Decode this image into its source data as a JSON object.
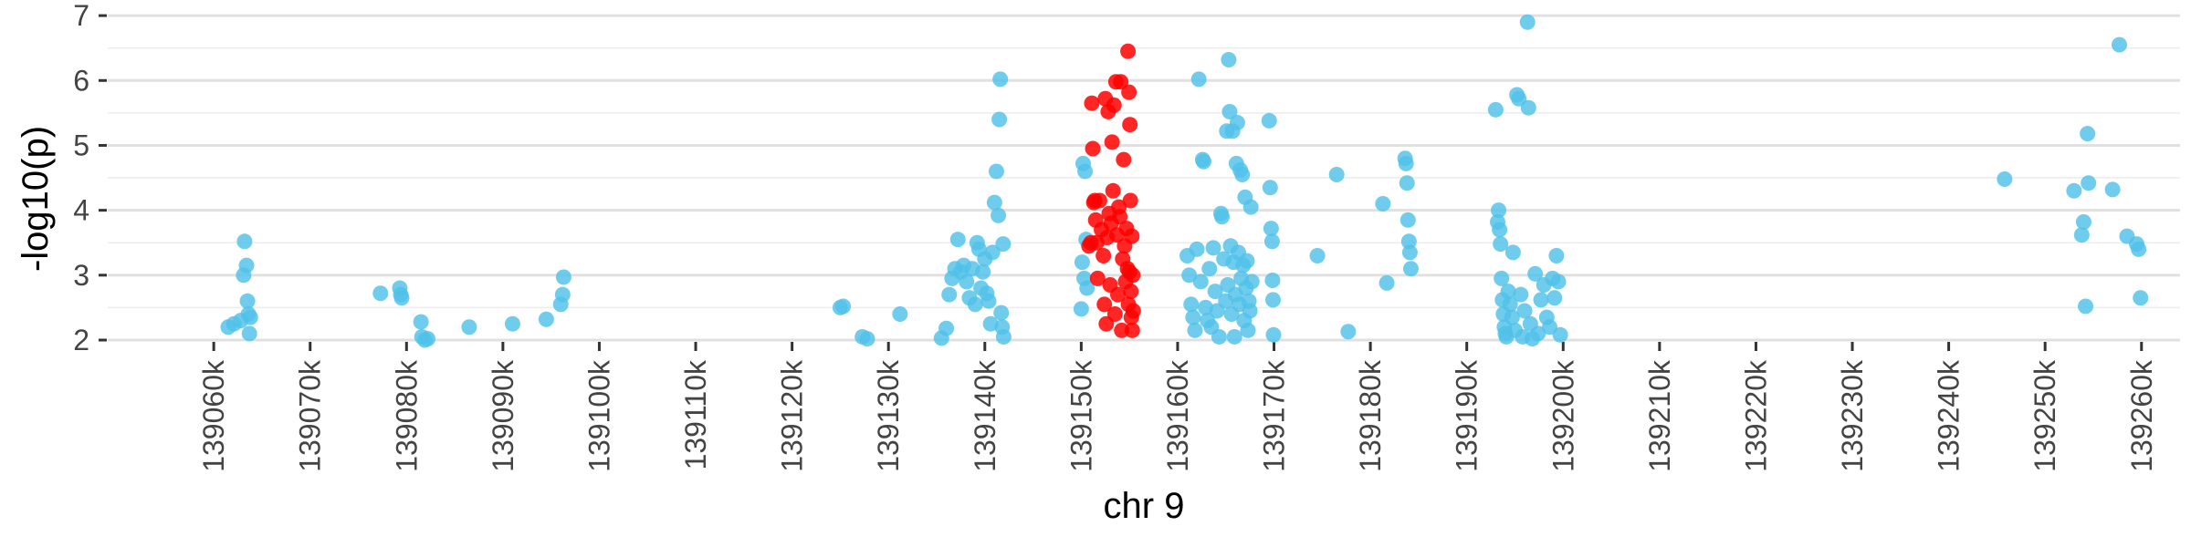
{
  "chart_data": {
    "type": "scatter",
    "title": "",
    "xlabel": "chr 9",
    "ylabel": "-log10(p)",
    "xlim": [
      139049000,
      139264000
    ],
    "ylim": [
      2,
      7.1
    ],
    "x_ticks": [
      139060000,
      139070000,
      139080000,
      139090000,
      139100000,
      139110000,
      139120000,
      139130000,
      139140000,
      139150000,
      139160000,
      139170000,
      139180000,
      139190000,
      139200000,
      139210000,
      139220000,
      139230000,
      139240000,
      139250000,
      139260000
    ],
    "x_tick_labels": [
      "139060k",
      "139070k",
      "139080k",
      "139090k",
      "139100k",
      "139110k",
      "139120k",
      "139130k",
      "139140k",
      "139150k",
      "139160k",
      "139170k",
      "139180k",
      "139190k",
      "139200k",
      "139210k",
      "139220k",
      "139230k",
      "139240k",
      "139250k",
      "139260k"
    ],
    "y_ticks": [
      2,
      3,
      4,
      5,
      6,
      7
    ],
    "y_tick_labels": [
      "2",
      "3",
      "4",
      "5",
      "6",
      "7"
    ],
    "grid": true,
    "legend": "none",
    "colors": {
      "default": "#4fc1e9",
      "highlight": "#ff0000"
    },
    "series": [
      {
        "color": "#4fc1e9",
        "points": [
          [
            139061500,
            2.2
          ],
          [
            139062100,
            2.25
          ],
          [
            139062800,
            2.3
          ],
          [
            139063100,
            3.0
          ],
          [
            139063200,
            3.52
          ],
          [
            139063400,
            3.15
          ],
          [
            139063500,
            2.6
          ],
          [
            139063600,
            2.4
          ],
          [
            139063700,
            2.1
          ],
          [
            139063800,
            2.35
          ],
          [
            139077300,
            2.72
          ],
          [
            139079300,
            2.8
          ],
          [
            139079400,
            2.7
          ],
          [
            139079500,
            2.65
          ],
          [
            139081500,
            2.28
          ],
          [
            139081600,
            2.05
          ],
          [
            139081900,
            2.0
          ],
          [
            139082200,
            2.02
          ],
          [
            139086500,
            2.2
          ],
          [
            139091000,
            2.25
          ],
          [
            139094500,
            2.32
          ],
          [
            139096000,
            2.55
          ],
          [
            139096200,
            2.7
          ],
          [
            139096300,
            2.97
          ],
          [
            139125000,
            2.5
          ],
          [
            139125300,
            2.52
          ],
          [
            139127300,
            2.05
          ],
          [
            139127800,
            2.02
          ],
          [
            139131200,
            2.4
          ],
          [
            139135500,
            2.03
          ],
          [
            139136000,
            2.18
          ],
          [
            139136300,
            2.7
          ],
          [
            139136600,
            2.95
          ],
          [
            139136900,
            3.1
          ],
          [
            139137200,
            3.55
          ],
          [
            139137500,
            3.05
          ],
          [
            139137800,
            3.15
          ],
          [
            139138100,
            2.9
          ],
          [
            139138400,
            2.65
          ],
          [
            139138700,
            3.1
          ],
          [
            139139000,
            2.55
          ],
          [
            139139200,
            3.5
          ],
          [
            139139400,
            3.4
          ],
          [
            139139600,
            2.8
          ],
          [
            139139800,
            3.05
          ],
          [
            139140000,
            3.25
          ],
          [
            139140200,
            2.72
          ],
          [
            139140400,
            2.6
          ],
          [
            139140600,
            2.25
          ],
          [
            139140800,
            3.35
          ],
          [
            139141000,
            4.12
          ],
          [
            139141200,
            4.6
          ],
          [
            139141400,
            3.92
          ],
          [
            139141500,
            5.4
          ],
          [
            139141600,
            6.02
          ],
          [
            139141700,
            2.42
          ],
          [
            139141800,
            2.2
          ],
          [
            139141900,
            3.48
          ],
          [
            139141950,
            2.05
          ],
          [
            139150000,
            2.48
          ],
          [
            139150100,
            3.2
          ],
          [
            139150200,
            4.72
          ],
          [
            139150300,
            2.95
          ],
          [
            139150400,
            4.6
          ],
          [
            139150500,
            3.55
          ],
          [
            139150600,
            2.8
          ],
          [
            139161000,
            3.3
          ],
          [
            139161200,
            3.0
          ],
          [
            139161400,
            2.55
          ],
          [
            139161600,
            2.35
          ],
          [
            139161800,
            2.15
          ],
          [
            139162000,
            3.4
          ],
          [
            139162200,
            6.02
          ],
          [
            139162400,
            2.9
          ],
          [
            139162600,
            4.78
          ],
          [
            139162700,
            4.75
          ],
          [
            139162900,
            2.5
          ],
          [
            139163100,
            2.3
          ],
          [
            139163300,
            3.1
          ],
          [
            139163500,
            2.2
          ],
          [
            139163700,
            3.42
          ],
          [
            139163900,
            2.75
          ],
          [
            139164100,
            2.45
          ],
          [
            139164300,
            2.05
          ],
          [
            139164500,
            3.95
          ],
          [
            139164600,
            3.9
          ],
          [
            139164800,
            3.25
          ],
          [
            139165000,
            2.6
          ],
          [
            139165100,
            5.22
          ],
          [
            139165200,
            2.85
          ],
          [
            139165300,
            6.32
          ],
          [
            139165400,
            5.52
          ],
          [
            139165500,
            3.45
          ],
          [
            139165600,
            2.4
          ],
          [
            139165700,
            5.22
          ],
          [
            139165800,
            3.2
          ],
          [
            139165900,
            2.05
          ],
          [
            139166000,
            2.7
          ],
          [
            139166100,
            4.72
          ],
          [
            139166200,
            5.35
          ],
          [
            139166300,
            3.35
          ],
          [
            139166400,
            2.55
          ],
          [
            139166500,
            4.62
          ],
          [
            139166600,
            2.95
          ],
          [
            139166700,
            4.55
          ],
          [
            139166800,
            3.15
          ],
          [
            139166900,
            2.3
          ],
          [
            139167000,
            4.2
          ],
          [
            139167100,
            2.8
          ],
          [
            139167200,
            3.22
          ],
          [
            139167300,
            2.15
          ],
          [
            139167400,
            2.6
          ],
          [
            139167500,
            2.45
          ],
          [
            139167600,
            4.05
          ],
          [
            139167700,
            2.9
          ],
          [
            139169500,
            5.38
          ],
          [
            139169600,
            4.35
          ],
          [
            139169700,
            3.72
          ],
          [
            139169800,
            3.52
          ],
          [
            139169850,
            2.92
          ],
          [
            139169900,
            2.62
          ],
          [
            139169950,
            2.08
          ],
          [
            139174500,
            3.3
          ],
          [
            139176500,
            4.55
          ],
          [
            139177700,
            2.13
          ],
          [
            139181300,
            4.1
          ],
          [
            139181700,
            2.88
          ],
          [
            139183600,
            4.8
          ],
          [
            139183700,
            4.72
          ],
          [
            139183800,
            4.42
          ],
          [
            139183900,
            3.85
          ],
          [
            139184000,
            3.52
          ],
          [
            139184100,
            3.35
          ],
          [
            139184200,
            3.1
          ],
          [
            139193000,
            5.55
          ],
          [
            139193200,
            3.82
          ],
          [
            139193300,
            4.0
          ],
          [
            139193400,
            3.7
          ],
          [
            139193500,
            3.48
          ],
          [
            139193600,
            2.95
          ],
          [
            139193700,
            2.62
          ],
          [
            139193800,
            2.4
          ],
          [
            139193900,
            2.2
          ],
          [
            139194000,
            2.1
          ],
          [
            139194100,
            2.05
          ],
          [
            139194300,
            2.75
          ],
          [
            139194500,
            2.55
          ],
          [
            139194700,
            2.35
          ],
          [
            139194800,
            3.35
          ],
          [
            139195000,
            2.15
          ],
          [
            139195200,
            5.78
          ],
          [
            139195400,
            5.72
          ],
          [
            139195600,
            2.7
          ],
          [
            139195800,
            2.05
          ],
          [
            139196000,
            2.45
          ],
          [
            139196300,
            6.9
          ],
          [
            139196400,
            5.58
          ],
          [
            139196600,
            2.25
          ],
          [
            139196800,
            2.02
          ],
          [
            139197100,
            3.02
          ],
          [
            139197400,
            2.1
          ],
          [
            139197700,
            2.62
          ],
          [
            139198000,
            2.85
          ],
          [
            139198300,
            2.35
          ],
          [
            139198600,
            2.2
          ],
          [
            139198900,
            2.95
          ],
          [
            139199100,
            2.65
          ],
          [
            139199300,
            3.3
          ],
          [
            139199500,
            2.9
          ],
          [
            139199700,
            2.08
          ],
          [
            139245800,
            4.48
          ],
          [
            139253000,
            4.3
          ],
          [
            139253800,
            3.62
          ],
          [
            139254000,
            3.82
          ],
          [
            139254200,
            2.52
          ],
          [
            139254400,
            5.18
          ],
          [
            139254500,
            4.42
          ],
          [
            139257000,
            4.32
          ],
          [
            139257700,
            6.55
          ],
          [
            139258500,
            3.6
          ],
          [
            139259500,
            3.48
          ],
          [
            139259700,
            3.4
          ],
          [
            139259900,
            2.65
          ]
        ]
      },
      {
        "color": "#ff0000",
        "points": [
          [
            139150800,
            3.45
          ],
          [
            139151000,
            3.5
          ],
          [
            139151100,
            5.65
          ],
          [
            139151200,
            4.95
          ],
          [
            139151300,
            4.12
          ],
          [
            139151400,
            4.15
          ],
          [
            139151500,
            3.85
          ],
          [
            139151600,
            3.5
          ],
          [
            139151700,
            2.95
          ],
          [
            139151900,
            4.15
          ],
          [
            139152100,
            3.7
          ],
          [
            139152300,
            3.3
          ],
          [
            139152400,
            2.55
          ],
          [
            139152500,
            5.72
          ],
          [
            139152600,
            2.25
          ],
          [
            139152700,
            3.58
          ],
          [
            139152800,
            5.52
          ],
          [
            139152900,
            3.95
          ],
          [
            139153000,
            2.85
          ],
          [
            139153100,
            3.8
          ],
          [
            139153200,
            5.05
          ],
          [
            139153300,
            4.3
          ],
          [
            139153400,
            5.62
          ],
          [
            139153500,
            2.4
          ],
          [
            139153600,
            5.98
          ],
          [
            139153700,
            3.62
          ],
          [
            139153800,
            2.7
          ],
          [
            139153900,
            4.05
          ],
          [
            139154000,
            3.9
          ],
          [
            139154100,
            5.98
          ],
          [
            139154200,
            2.15
          ],
          [
            139154300,
            3.25
          ],
          [
            139154400,
            4.78
          ],
          [
            139154500,
            3.45
          ],
          [
            139154600,
            2.9
          ],
          [
            139154700,
            3.72
          ],
          [
            139154800,
            3.1
          ],
          [
            139154850,
            6.45
          ],
          [
            139154900,
            2.55
          ],
          [
            139154950,
            5.82
          ],
          [
            139155000,
            3.05
          ],
          [
            139155050,
            5.32
          ],
          [
            139155100,
            4.15
          ],
          [
            139155150,
            2.75
          ],
          [
            139155200,
            2.35
          ],
          [
            139155250,
            3.6
          ],
          [
            139155300,
            2.15
          ],
          [
            139155350,
            3.0
          ],
          [
            139155400,
            2.45
          ]
        ]
      }
    ]
  }
}
